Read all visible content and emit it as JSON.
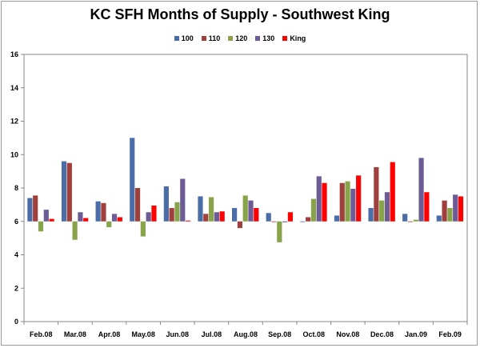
{
  "chart_data": {
    "type": "bar",
    "title": "KC SFH Months of Supply - Southwest King",
    "xlabel": "",
    "ylabel": "",
    "ylim": [
      0,
      16
    ],
    "yticks": [
      "0",
      "2",
      "4",
      "6",
      "8",
      "10",
      "12",
      "14",
      "16"
    ],
    "baseline": 6,
    "grid": false,
    "legend_position": "top",
    "categories": [
      "Feb.08",
      "Mar.08",
      "Apr.08",
      "May.08",
      "Jun.08",
      "Jul.08",
      "Aug.08",
      "Sep.08",
      "Oct.08",
      "Nov.08",
      "Dec.08",
      "Jan.09",
      "Feb.09"
    ],
    "series": [
      {
        "name": "100",
        "color": "#4a6da8",
        "values": [
          7.4,
          9.6,
          7.2,
          11.0,
          8.1,
          7.5,
          6.8,
          6.5,
          6.0,
          6.35,
          6.8,
          6.45,
          6.35
        ]
      },
      {
        "name": "110",
        "color": "#a0403c",
        "values": [
          7.55,
          9.5,
          7.1,
          8.0,
          6.8,
          6.45,
          5.6,
          6.0,
          6.25,
          8.3,
          9.25,
          6.0,
          7.25
        ]
      },
      {
        "name": "120",
        "color": "#88a44a",
        "values": [
          5.4,
          4.9,
          5.65,
          5.1,
          7.15,
          7.45,
          7.55,
          4.75,
          7.35,
          8.4,
          7.25,
          6.1,
          6.8
        ]
      },
      {
        "name": "130",
        "color": "#6c5b94",
        "values": [
          6.7,
          6.55,
          6.45,
          6.55,
          8.55,
          6.55,
          7.25,
          5.95,
          8.7,
          7.95,
          7.75,
          9.8,
          7.6
        ]
      },
      {
        "name": "King",
        "color": "#ff0000",
        "values": [
          6.15,
          6.2,
          6.25,
          6.95,
          6.05,
          6.6,
          6.8,
          6.55,
          8.3,
          8.75,
          9.55,
          7.75,
          7.5
        ]
      }
    ]
  }
}
